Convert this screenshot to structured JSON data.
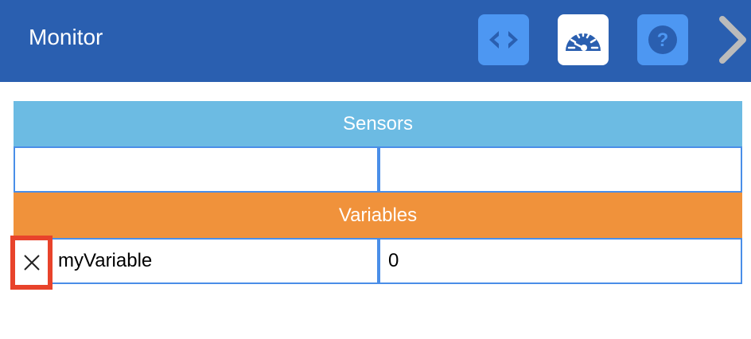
{
  "header": {
    "title": "Monitor",
    "buttons": [
      {
        "name": "code-icon"
      },
      {
        "name": "gauge-icon",
        "active": true
      },
      {
        "name": "help-icon"
      },
      {
        "name": "chevron-right-icon"
      }
    ]
  },
  "colors": {
    "header": "#2a5fb0",
    "sensors": "#6cbbe3",
    "variables": "#f0923b",
    "highlight": "#e8432b"
  },
  "sensors": {
    "label": "Sensors",
    "rows": [
      [
        "",
        ""
      ]
    ]
  },
  "variables": {
    "label": "Variables",
    "rows": [
      {
        "name": "myVariable",
        "value": "0"
      }
    ]
  }
}
